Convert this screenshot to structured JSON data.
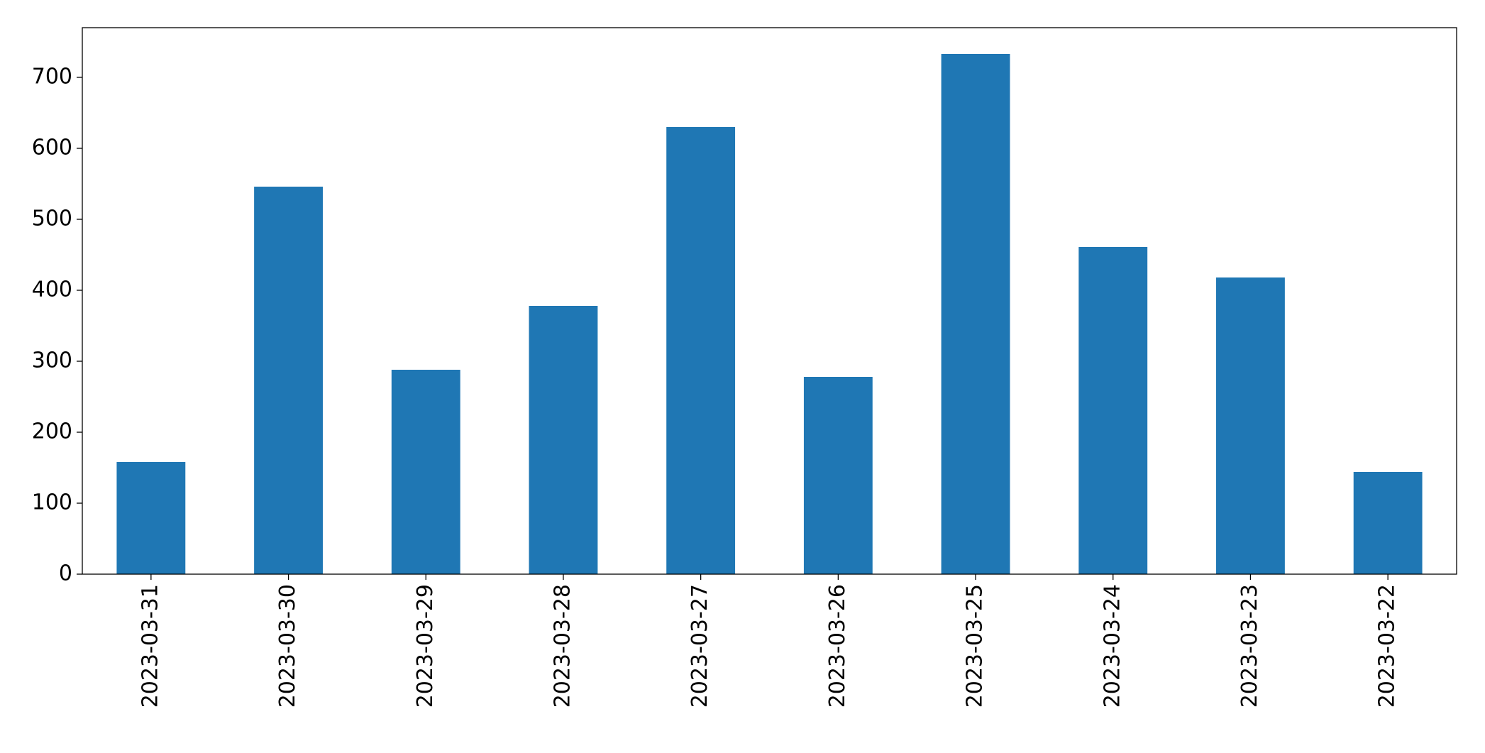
{
  "chart_data": {
    "type": "bar",
    "categories": [
      "2023-03-31",
      "2023-03-30",
      "2023-03-29",
      "2023-03-28",
      "2023-03-27",
      "2023-03-26",
      "2023-03-25",
      "2023-03-24",
      "2023-03-23",
      "2023-03-22"
    ],
    "values": [
      158,
      546,
      288,
      378,
      630,
      278,
      733,
      461,
      418,
      144
    ],
    "color": "#1f77b4",
    "ylim": [
      0,
      770
    ],
    "yticks": [
      0,
      100,
      200,
      300,
      400,
      500,
      600,
      700
    ],
    "grid": false
  }
}
